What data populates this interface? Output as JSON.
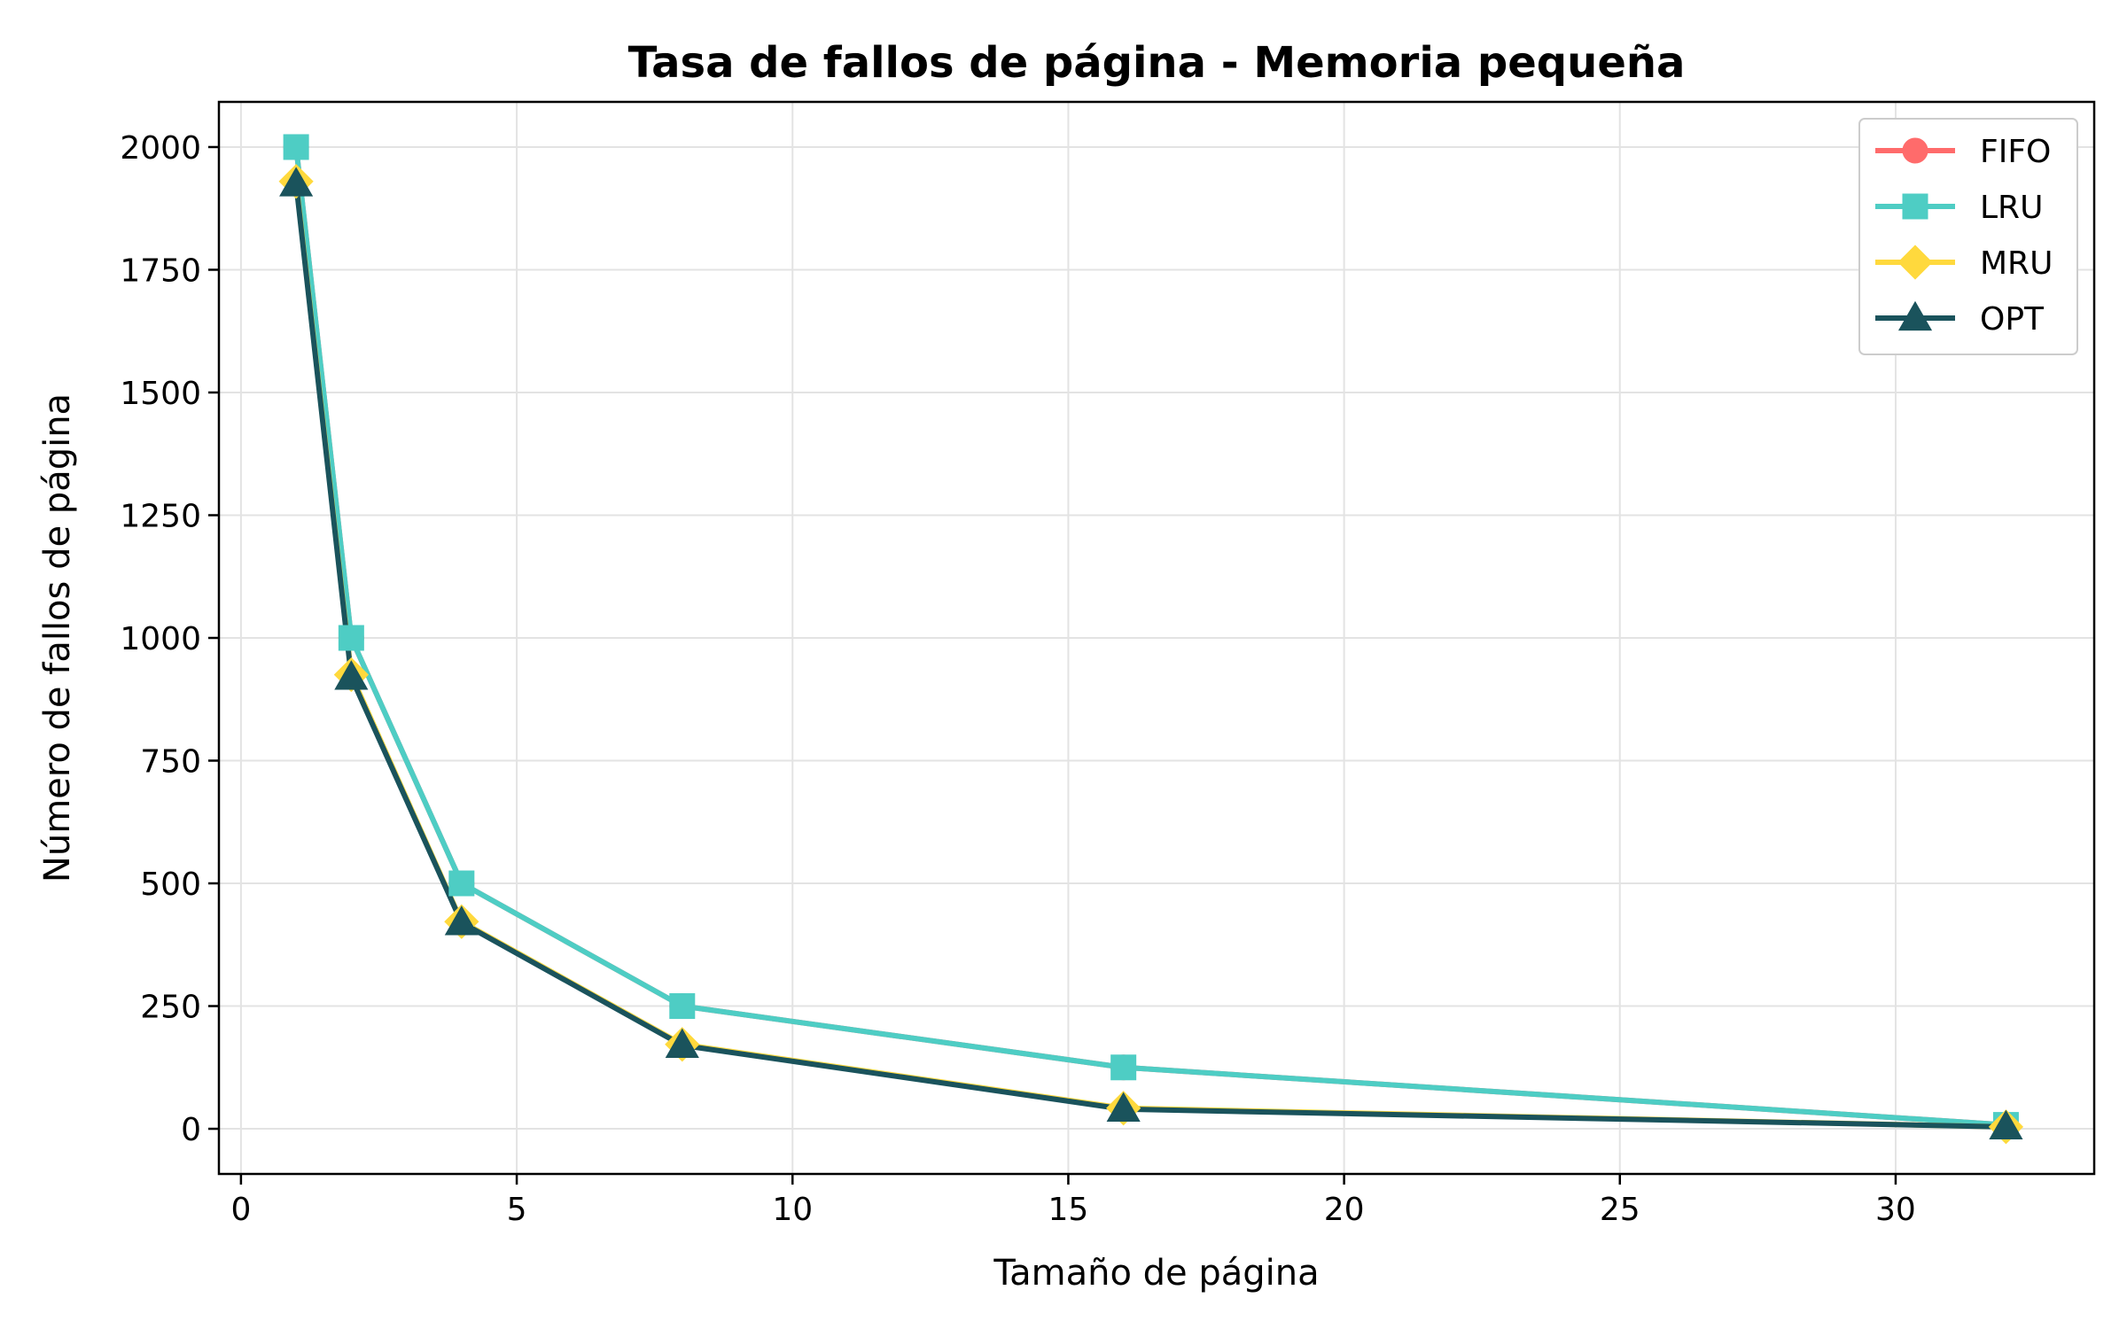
{
  "chart_data": {
    "type": "line",
    "title": "Tasa de fallos de página - Memoria pequeña",
    "xlabel": "Tamaño de página",
    "ylabel": "Número de fallos de página",
    "xlim": [
      -0.4,
      33.6
    ],
    "ylim": [
      -92,
      2092
    ],
    "xticks": [
      0,
      5,
      10,
      15,
      20,
      25,
      30
    ],
    "yticks": [
      0,
      250,
      500,
      750,
      1000,
      1250,
      1500,
      1750,
      2000
    ],
    "grid": true,
    "legend_position": "top-right",
    "x": [
      1,
      2,
      4,
      8,
      16,
      32
    ],
    "series": [
      {
        "name": "FIFO",
        "color": "#ff6b6b",
        "marker": "circle",
        "values": [
          2000,
          1000,
          500,
          250,
          125,
          8
        ]
      },
      {
        "name": "LRU",
        "color": "#4ecdc4",
        "marker": "square",
        "values": [
          2000,
          1000,
          500,
          250,
          125,
          8
        ]
      },
      {
        "name": "MRU",
        "color": "#ffd93d",
        "marker": "diamond",
        "values": [
          1930,
          925,
          422,
          172,
          42,
          4
        ]
      },
      {
        "name": "OPT",
        "color": "#1a535c",
        "marker": "triangle",
        "values": [
          1925,
          920,
          420,
          170,
          40,
          4
        ]
      }
    ]
  }
}
